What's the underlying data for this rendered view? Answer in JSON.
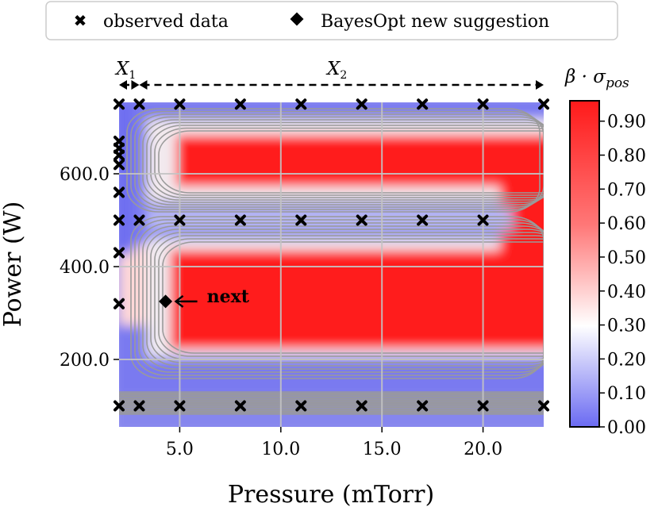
{
  "chart_data": {
    "type": "heatmap",
    "title": "",
    "xlabel": "Pressure (mTorr)",
    "ylabel": "Power (W)",
    "xlim": [
      2.0,
      23.0
    ],
    "ylim": [
      75,
      750
    ],
    "xticks": [
      5.0,
      10.0,
      15.0,
      20.0
    ],
    "xtick_labels": [
      "5.0",
      "10.0",
      "15.0",
      "20.0"
    ],
    "yticks": [
      200.0,
      400.0,
      600.0
    ],
    "ytick_labels": [
      "200.0",
      "400.0",
      "600.0"
    ],
    "grid": true,
    "colorbar": {
      "label": "β · σ_pos",
      "label_main": "β · σ",
      "label_sub": "pos",
      "range": [
        0.0,
        0.96
      ],
      "ticks": [
        0.0,
        0.1,
        0.2,
        0.3,
        0.4,
        0.5,
        0.6,
        0.7,
        0.8,
        0.9
      ],
      "tick_labels": [
        "0.00",
        "0.10",
        "0.20",
        "0.30",
        "0.40",
        "0.50",
        "0.60",
        "0.70",
        "0.80",
        "0.90"
      ],
      "colormap": [
        "#6a6af2",
        "#ffffff",
        "#ff1a1a"
      ]
    },
    "legend": {
      "placement": "top-center",
      "entries": [
        {
          "marker": "x",
          "label": "observed data"
        },
        {
          "marker": "diamond",
          "label": "BayesOpt new suggestion"
        }
      ]
    },
    "region_annotations": [
      {
        "label_main": "X",
        "label_sub": "1",
        "x_range": [
          2.0,
          3.0
        ]
      },
      {
        "label_main": "X",
        "label_sub": "2",
        "x_range": [
          3.0,
          23.0
        ]
      }
    ],
    "observed_data": [
      {
        "pressure": 2.0,
        "power": 750
      },
      {
        "pressure": 3.0,
        "power": 750
      },
      {
        "pressure": 5.0,
        "power": 750
      },
      {
        "pressure": 8.0,
        "power": 750
      },
      {
        "pressure": 11.0,
        "power": 750
      },
      {
        "pressure": 14.0,
        "power": 750
      },
      {
        "pressure": 17.0,
        "power": 750
      },
      {
        "pressure": 20.0,
        "power": 750
      },
      {
        "pressure": 23.0,
        "power": 750
      },
      {
        "pressure": 2.0,
        "power": 670
      },
      {
        "pressure": 2.0,
        "power": 655
      },
      {
        "pressure": 2.0,
        "power": 640
      },
      {
        "pressure": 2.0,
        "power": 620
      },
      {
        "pressure": 2.0,
        "power": 560
      },
      {
        "pressure": 2.0,
        "power": 500
      },
      {
        "pressure": 3.0,
        "power": 500
      },
      {
        "pressure": 5.0,
        "power": 500
      },
      {
        "pressure": 8.0,
        "power": 500
      },
      {
        "pressure": 11.0,
        "power": 500
      },
      {
        "pressure": 14.0,
        "power": 500
      },
      {
        "pressure": 17.0,
        "power": 500
      },
      {
        "pressure": 20.0,
        "power": 500
      },
      {
        "pressure": 2.0,
        "power": 430
      },
      {
        "pressure": 2.0,
        "power": 320
      },
      {
        "pressure": 2.0,
        "power": 100
      },
      {
        "pressure": 3.0,
        "power": 100
      },
      {
        "pressure": 5.0,
        "power": 100
      },
      {
        "pressure": 8.0,
        "power": 100
      },
      {
        "pressure": 11.0,
        "power": 100
      },
      {
        "pressure": 14.0,
        "power": 100
      },
      {
        "pressure": 17.0,
        "power": 100
      },
      {
        "pressure": 20.0,
        "power": 100
      },
      {
        "pressure": 23.0,
        "power": 100
      }
    ],
    "suggestion": {
      "pressure": 4.3,
      "power": 325,
      "label": "next"
    }
  }
}
